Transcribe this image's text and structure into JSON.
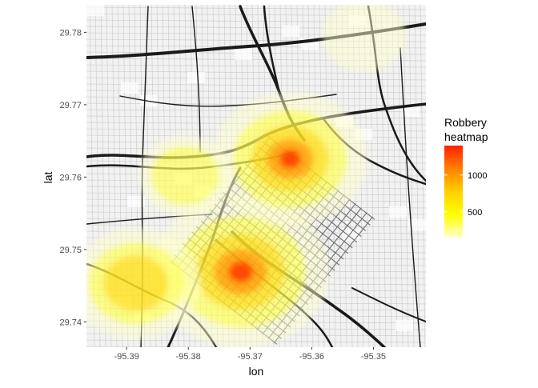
{
  "chart_data": {
    "type": "heatmap",
    "xlabel": "lon",
    "ylabel": "lat",
    "xlim": [
      -95.3965,
      -95.3415
    ],
    "ylim": [
      29.7365,
      29.7838
    ],
    "x_ticks": [
      -95.39,
      -95.38,
      -95.37,
      -95.36,
      -95.35
    ],
    "y_ticks": [
      29.74,
      29.75,
      29.76,
      29.77,
      29.78
    ],
    "basemap": "street-map",
    "legend": {
      "title_lines": [
        "Robbery",
        "heatmap"
      ],
      "placement": "right",
      "range": [
        150,
        1400
      ],
      "ticks": [
        500,
        1000
      ],
      "colors": [
        "#ffffcc",
        "#ffff00",
        "#ffd000",
        "#ff8000",
        "#ff2000"
      ]
    },
    "hotspots": [
      {
        "lon": -95.3715,
        "lat": 29.7469,
        "value": 1400
      },
      {
        "lon": -95.3635,
        "lat": 29.7625,
        "value": 1150
      },
      {
        "lon": -95.3885,
        "lat": 29.7453,
        "value": 850
      },
      {
        "lon": -95.3805,
        "lat": 29.7602,
        "value": 420
      },
      {
        "lon": -95.3515,
        "lat": 29.7795,
        "value": 300
      }
    ]
  }
}
